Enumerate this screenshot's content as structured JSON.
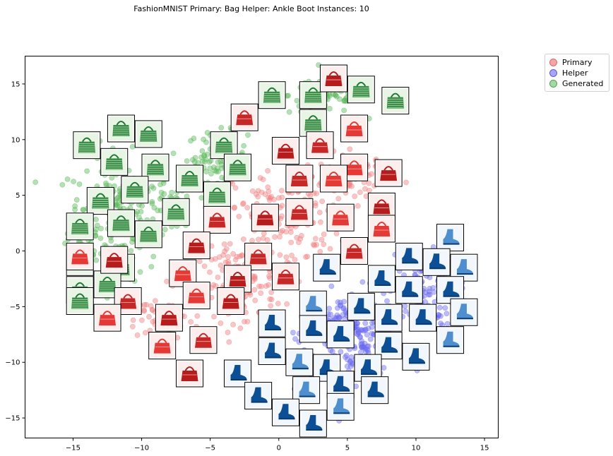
{
  "chart_data": {
    "type": "scatter",
    "title": "FashionMNIST Primary: Bag Helper: Ankle Boot Instances: 10",
    "xlim": [
      -18.5,
      16
    ],
    "ylim": [
      -16.8,
      17.5
    ],
    "xticks": [
      -15,
      -10,
      -5,
      0,
      5,
      10,
      15
    ],
    "yticks": [
      -15,
      -10,
      -5,
      0,
      5,
      10,
      15
    ],
    "legend": {
      "position": "outside-top-right"
    },
    "series": [
      {
        "name": "Primary",
        "color": "#f08080",
        "clusters": [
          {
            "cx": 0.5,
            "cy": 3.0,
            "sx": 3.5,
            "sy": 4.0,
            "n": 160
          },
          {
            "cx": -3.0,
            "cy": -3.0,
            "sx": 2.5,
            "sy": 3.0,
            "n": 140
          },
          {
            "cx": 5.5,
            "cy": 6.5,
            "sx": 2.5,
            "sy": 2.0,
            "n": 90
          },
          {
            "cx": -9.0,
            "cy": -6.0,
            "sx": 2.0,
            "sy": 2.0,
            "n": 40
          }
        ]
      },
      {
        "name": "Helper",
        "color": "#6a6aef",
        "clusters": [
          {
            "cx": 5.5,
            "cy": -7.5,
            "sx": 3.5,
            "sy": 3.5,
            "n": 260
          },
          {
            "cx": 10.5,
            "cy": -3.5,
            "sx": 2.2,
            "sy": 3.0,
            "n": 120
          }
        ]
      },
      {
        "name": "Generated",
        "color": "#5cb85c",
        "clusters": [
          {
            "cx": -12.0,
            "cy": 3.0,
            "sx": 3.0,
            "sy": 5.0,
            "n": 230
          },
          {
            "cx": -4.5,
            "cy": 8.5,
            "sx": 2.0,
            "sy": 2.0,
            "n": 80
          },
          {
            "cx": 3.5,
            "cy": 14.0,
            "sx": 2.5,
            "sy": 1.5,
            "n": 80
          },
          {
            "cx": -8.0,
            "cy": 4.0,
            "sx": 1.5,
            "sy": 2.0,
            "n": 40
          }
        ]
      }
    ],
    "thumbnails": {
      "bags": [
        [
          4.0,
          15.5
        ],
        [
          -2.5,
          12.0
        ],
        [
          5.5,
          11.0
        ],
        [
          0.5,
          9.0
        ],
        [
          3.0,
          9.5
        ],
        [
          5.5,
          7.5
        ],
        [
          8.0,
          7.0
        ],
        [
          1.5,
          6.5
        ],
        [
          4.0,
          6.5
        ],
        [
          -1.0,
          3.0
        ],
        [
          1.5,
          3.5
        ],
        [
          4.5,
          3.0
        ],
        [
          7.5,
          4.0
        ],
        [
          -4.5,
          2.8
        ],
        [
          7.5,
          2.0
        ],
        [
          -6.0,
          0.5
        ],
        [
          5.5,
          0.0
        ],
        [
          -14.5,
          -0.5
        ],
        [
          -12.0,
          -0.8
        ],
        [
          -1.5,
          -0.5
        ],
        [
          -7.0,
          -2.0
        ],
        [
          -3.0,
          -2.5
        ],
        [
          0.5,
          -2.3
        ],
        [
          -6.0,
          -4.0
        ],
        [
          -3.5,
          -4.5
        ],
        [
          -11.0,
          -4.5
        ],
        [
          -12.5,
          -6.0
        ],
        [
          -8.0,
          -6.0
        ],
        [
          -5.5,
          -8.0
        ],
        [
          -8.5,
          -8.5
        ],
        [
          -6.5,
          -11.0
        ]
      ],
      "boots": [
        [
          12.5,
          1.2
        ],
        [
          3.5,
          -1.5
        ],
        [
          9.5,
          -0.5
        ],
        [
          11.5,
          -1.0
        ],
        [
          13.5,
          -1.5
        ],
        [
          7.5,
          -2.5
        ],
        [
          9.5,
          -3.5
        ],
        [
          12.5,
          -3.5
        ],
        [
          2.5,
          -4.8
        ],
        [
          6.0,
          -5.0
        ],
        [
          8.0,
          -6.0
        ],
        [
          10.5,
          -6.0
        ],
        [
          13.5,
          -5.5
        ],
        [
          -0.5,
          -6.5
        ],
        [
          2.5,
          -7.0
        ],
        [
          4.5,
          -7.5
        ],
        [
          12.5,
          -8.0
        ],
        [
          -0.5,
          -9.0
        ],
        [
          8.0,
          -8.5
        ],
        [
          10.0,
          -9.5
        ],
        [
          1.5,
          -10.0
        ],
        [
          3.5,
          -10.5
        ],
        [
          6.5,
          -10.5
        ],
        [
          -3.0,
          -11.0
        ],
        [
          2.0,
          -12.5
        ],
        [
          4.5,
          -12.0
        ],
        [
          7.0,
          -12.5
        ],
        [
          -1.5,
          -13.0
        ],
        [
          4.5,
          -14.0
        ],
        [
          0.5,
          -14.5
        ],
        [
          2.5,
          -15.5
        ]
      ],
      "generated": [
        [
          -0.5,
          14.0
        ],
        [
          2.5,
          14.0
        ],
        [
          6.0,
          14.5
        ],
        [
          8.5,
          13.5
        ],
        [
          2.5,
          11.5
        ],
        [
          -11.5,
          11.0
        ],
        [
          -9.5,
          10.5
        ],
        [
          -14.0,
          9.5
        ],
        [
          -12.0,
          8.0
        ],
        [
          -9.0,
          7.5
        ],
        [
          -4.0,
          9.5
        ],
        [
          -3.0,
          7.5
        ],
        [
          -6.5,
          6.5
        ],
        [
          -4.5,
          5.0
        ],
        [
          -10.5,
          5.5
        ],
        [
          -13.0,
          4.5
        ],
        [
          -7.5,
          3.5
        ],
        [
          -14.5,
          2.2
        ],
        [
          -11.5,
          2.5
        ],
        [
          -9.5,
          1.5
        ],
        [
          -14.5,
          -1.0
        ],
        [
          -11.5,
          -1.5
        ],
        [
          -14.5,
          -3.5
        ],
        [
          -12.5,
          -3.0
        ],
        [
          -14.5,
          -4.5
        ]
      ]
    }
  }
}
